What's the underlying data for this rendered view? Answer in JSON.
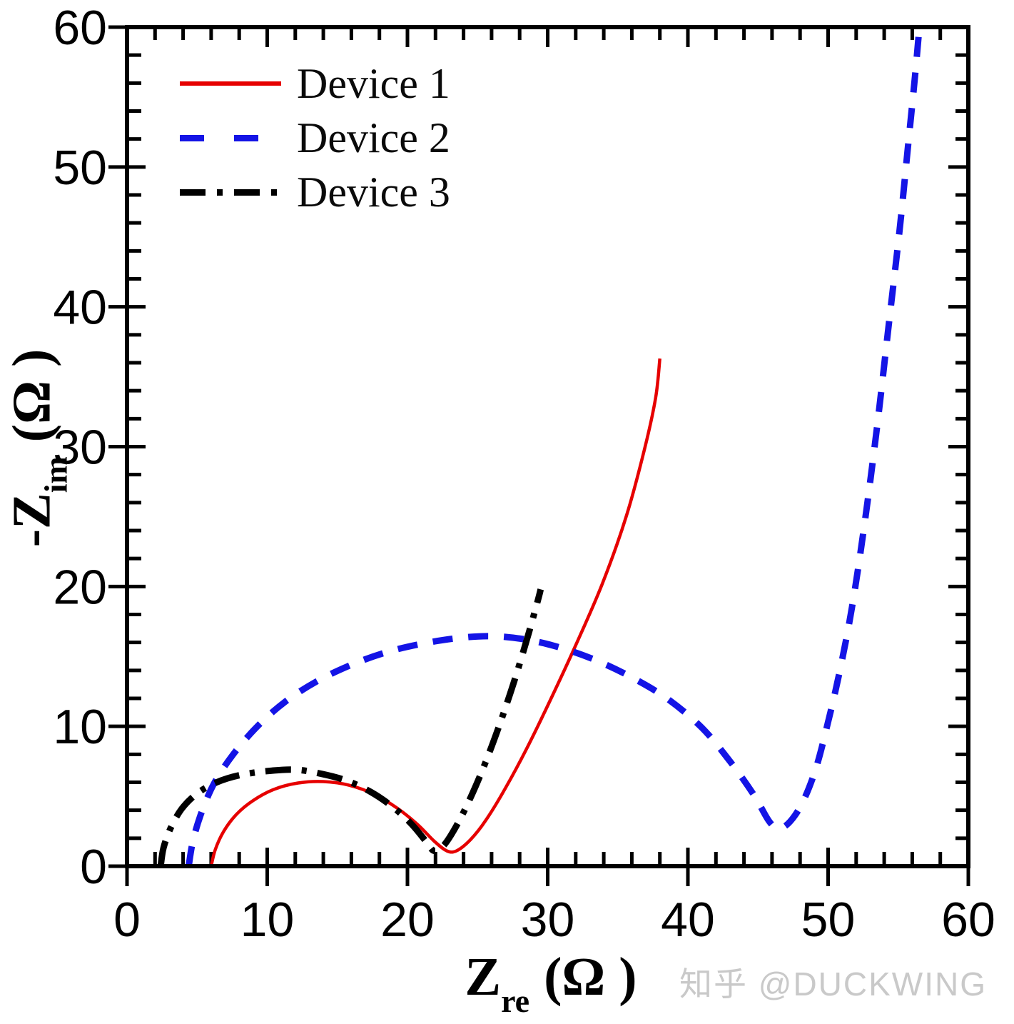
{
  "watermark": "知乎 @DUCKWING",
  "chart_data": {
    "type": "line",
    "title": "",
    "xlabel": "Z_re (Ω)",
    "ylabel": "-Z_im (Ω)",
    "xlabel_parts": {
      "main": "Z",
      "sub": "re",
      "unit": "(Ω )"
    },
    "ylabel_parts": {
      "main": "-Z",
      "sub": "im",
      "unit": "(Ω )"
    },
    "xlim": [
      0,
      60
    ],
    "ylim": [
      0,
      60
    ],
    "x_ticks": [
      0,
      10,
      20,
      30,
      40,
      50,
      60
    ],
    "y_ticks": [
      0,
      10,
      20,
      30,
      40,
      50,
      60
    ],
    "minor_tick_step": 2,
    "grid": false,
    "legend_position": "top-left",
    "frame_color": "#000000",
    "series": [
      {
        "name": "Device 1",
        "color": "#e60000",
        "style": "solid",
        "width": 4.5,
        "dash": null,
        "points": [
          [
            6.0,
            0
          ],
          [
            6.3,
            1.2
          ],
          [
            6.9,
            2.5
          ],
          [
            7.8,
            3.7
          ],
          [
            9.0,
            4.7
          ],
          [
            10.5,
            5.5
          ],
          [
            12.2,
            5.95
          ],
          [
            14.0,
            6.05
          ],
          [
            15.8,
            5.8
          ],
          [
            17.5,
            5.2
          ],
          [
            19.2,
            4.2
          ],
          [
            20.7,
            3.0
          ],
          [
            21.9,
            1.8
          ],
          [
            22.8,
            1.1
          ],
          [
            23.5,
            1.1
          ],
          [
            24.5,
            1.9
          ],
          [
            25.6,
            3.3
          ],
          [
            27.0,
            5.6
          ],
          [
            28.5,
            8.4
          ],
          [
            30.2,
            11.9
          ],
          [
            32.0,
            15.8
          ],
          [
            33.9,
            20.2
          ],
          [
            35.6,
            25.0
          ],
          [
            36.9,
            29.8
          ],
          [
            37.7,
            33.5
          ],
          [
            38.0,
            36.3
          ]
        ]
      },
      {
        "name": "Device 2",
        "color": "#1414e6",
        "style": "dashed",
        "width": 9,
        "dash": [
          28,
          22
        ],
        "points": [
          [
            4.4,
            0
          ],
          [
            4.7,
            1.8
          ],
          [
            5.3,
            3.8
          ],
          [
            6.2,
            5.9
          ],
          [
            7.5,
            7.9
          ],
          [
            9.2,
            9.9
          ],
          [
            11.2,
            11.7
          ],
          [
            13.5,
            13.2
          ],
          [
            16,
            14.4
          ],
          [
            18.5,
            15.3
          ],
          [
            21,
            15.9
          ],
          [
            23.5,
            16.3
          ],
          [
            26,
            16.45
          ],
          [
            28.5,
            16.2
          ],
          [
            31,
            15.6
          ],
          [
            33.5,
            14.7
          ],
          [
            36,
            13.5
          ],
          [
            38.5,
            12.0
          ],
          [
            41,
            9.9
          ],
          [
            43,
            7.5
          ],
          [
            44.7,
            5.1
          ],
          [
            45.8,
            3.2
          ],
          [
            46.5,
            2.7
          ],
          [
            47.3,
            3.2
          ],
          [
            48.2,
            4.6
          ],
          [
            49.1,
            6.9
          ],
          [
            49.9,
            9.9
          ],
          [
            50.8,
            13.8
          ],
          [
            51.7,
            18.5
          ],
          [
            52.6,
            24.5
          ],
          [
            53.5,
            31.5
          ],
          [
            54.3,
            38.5
          ],
          [
            55.1,
            45.5
          ],
          [
            55.7,
            51.5
          ],
          [
            56.2,
            56.5
          ],
          [
            56.55,
            60.5
          ]
        ]
      },
      {
        "name": "Device 3",
        "color": "#000000",
        "style": "dash-dot",
        "width": 9,
        "dash": [
          36,
          15,
          7,
          15
        ],
        "points": [
          [
            2.4,
            0
          ],
          [
            2.6,
            1.3
          ],
          [
            3.1,
            2.7
          ],
          [
            3.9,
            4.1
          ],
          [
            5.0,
            5.2
          ],
          [
            6.4,
            6.0
          ],
          [
            8.0,
            6.5
          ],
          [
            10.0,
            6.8
          ],
          [
            12.0,
            6.9
          ],
          [
            13.9,
            6.6
          ],
          [
            15.7,
            6.1
          ],
          [
            17.4,
            5.3
          ],
          [
            19.0,
            4.2
          ],
          [
            20.3,
            3.0
          ],
          [
            21.3,
            1.8
          ],
          [
            21.9,
            1.1
          ],
          [
            22.6,
            1.5
          ],
          [
            23.5,
            2.9
          ],
          [
            24.5,
            4.9
          ],
          [
            25.6,
            7.5
          ],
          [
            26.7,
            10.5
          ],
          [
            27.7,
            13.5
          ],
          [
            28.6,
            16.5
          ],
          [
            29.3,
            19.0
          ],
          [
            29.5,
            19.8
          ]
        ]
      }
    ]
  }
}
